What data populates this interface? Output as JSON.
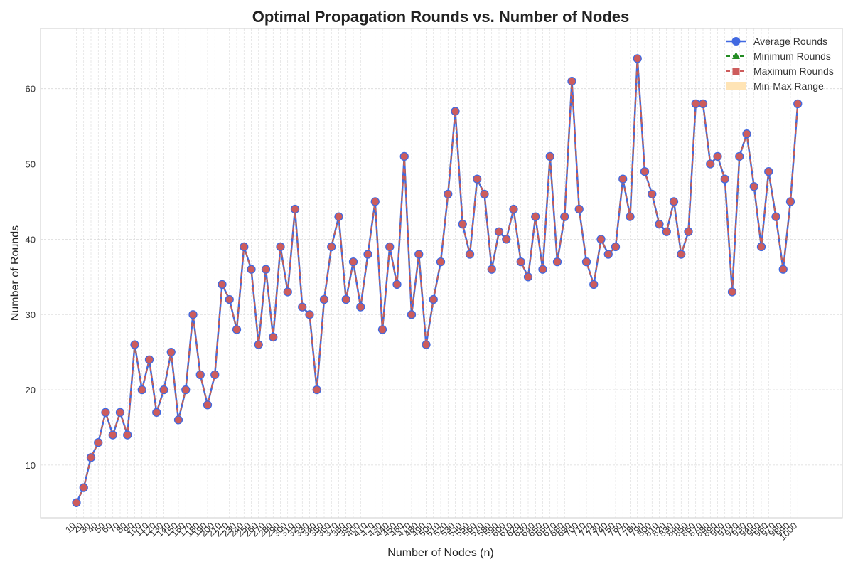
{
  "colors": {
    "average": "#4169e1",
    "minimum": "#228b22",
    "maximum": "#cd5c5c",
    "range_fill": "#ffe4b5",
    "grid": "#d9d9d9",
    "frame": "#cccccc"
  },
  "chart_data": {
    "type": "line",
    "title": "Optimal Propagation Rounds vs. Number of Nodes",
    "xlabel": "Number of Nodes (n)",
    "ylabel": "Number of Rounds",
    "ylim": [
      3,
      68
    ],
    "yticks": [
      10,
      20,
      30,
      40,
      50,
      60
    ],
    "grid": true,
    "legend_position": "top-right",
    "x": [
      10,
      20,
      30,
      40,
      50,
      60,
      70,
      80,
      90,
      100,
      110,
      120,
      130,
      140,
      150,
      160,
      170,
      180,
      190,
      200,
      210,
      220,
      230,
      240,
      250,
      260,
      270,
      280,
      290,
      300,
      310,
      320,
      330,
      340,
      350,
      360,
      370,
      380,
      390,
      400,
      410,
      420,
      430,
      440,
      450,
      460,
      470,
      480,
      490,
      500,
      510,
      520,
      530,
      540,
      550,
      560,
      570,
      580,
      590,
      600,
      610,
      620,
      630,
      640,
      650,
      660,
      670,
      680,
      690,
      700,
      710,
      720,
      730,
      740,
      750,
      760,
      770,
      780,
      790,
      800,
      810,
      820,
      830,
      840,
      850,
      860,
      870,
      880,
      890,
      900,
      910,
      920,
      930,
      940,
      950,
      960,
      970,
      980,
      990,
      1000
    ],
    "series": [
      {
        "name": "Average Rounds",
        "marker": "circle",
        "line": "solid",
        "values": [
          5,
          7,
          11,
          13,
          17,
          14,
          17,
          14,
          26,
          20,
          24,
          17,
          20,
          25,
          16,
          20,
          30,
          22,
          18,
          22,
          34,
          32,
          28,
          39,
          36,
          26,
          36,
          27,
          39,
          33,
          44,
          31,
          30,
          20,
          32,
          39,
          43,
          32,
          37,
          31,
          38,
          45,
          28,
          39,
          34,
          51,
          30,
          38,
          26,
          32,
          37,
          46,
          57,
          42,
          38,
          48,
          46,
          36,
          41,
          40,
          44,
          37,
          35,
          43,
          36,
          51,
          37,
          43,
          61,
          44,
          37,
          34,
          40,
          38,
          39,
          48,
          43,
          64,
          49,
          46,
          42,
          41,
          45,
          38,
          41,
          58,
          58,
          50,
          51,
          48,
          33,
          51,
          54,
          47,
          39,
          49,
          43,
          36,
          45,
          58
        ]
      },
      {
        "name": "Minimum Rounds",
        "marker": "triangle",
        "line": "dashed",
        "values": [
          5,
          7,
          11,
          13,
          17,
          14,
          17,
          14,
          26,
          20,
          24,
          17,
          20,
          25,
          16,
          20,
          30,
          22,
          18,
          22,
          34,
          32,
          28,
          39,
          36,
          26,
          36,
          27,
          39,
          33,
          44,
          31,
          30,
          20,
          32,
          39,
          43,
          32,
          37,
          31,
          38,
          45,
          28,
          39,
          34,
          51,
          30,
          38,
          26,
          32,
          37,
          46,
          57,
          42,
          38,
          48,
          46,
          36,
          41,
          40,
          44,
          37,
          35,
          43,
          36,
          51,
          37,
          43,
          61,
          44,
          37,
          34,
          40,
          38,
          39,
          48,
          43,
          64,
          49,
          46,
          42,
          41,
          45,
          38,
          41,
          58,
          58,
          50,
          51,
          48,
          33,
          51,
          54,
          47,
          39,
          49,
          43,
          36,
          45,
          58
        ]
      },
      {
        "name": "Maximum Rounds",
        "marker": "square",
        "line": "dashed",
        "values": [
          5,
          7,
          11,
          13,
          17,
          14,
          17,
          14,
          26,
          20,
          24,
          17,
          20,
          25,
          16,
          20,
          30,
          22,
          18,
          22,
          34,
          32,
          28,
          39,
          36,
          26,
          36,
          27,
          39,
          33,
          44,
          31,
          30,
          20,
          32,
          39,
          43,
          32,
          37,
          31,
          38,
          45,
          28,
          39,
          34,
          51,
          30,
          38,
          26,
          32,
          37,
          46,
          57,
          42,
          38,
          48,
          46,
          36,
          41,
          40,
          44,
          37,
          35,
          43,
          36,
          51,
          37,
          43,
          61,
          44,
          37,
          34,
          40,
          38,
          39,
          48,
          43,
          64,
          49,
          46,
          42,
          41,
          45,
          38,
          41,
          58,
          58,
          50,
          51,
          48,
          33,
          51,
          54,
          47,
          39,
          49,
          43,
          36,
          45,
          58
        ]
      }
    ],
    "range_label": "Min-Max Range"
  }
}
